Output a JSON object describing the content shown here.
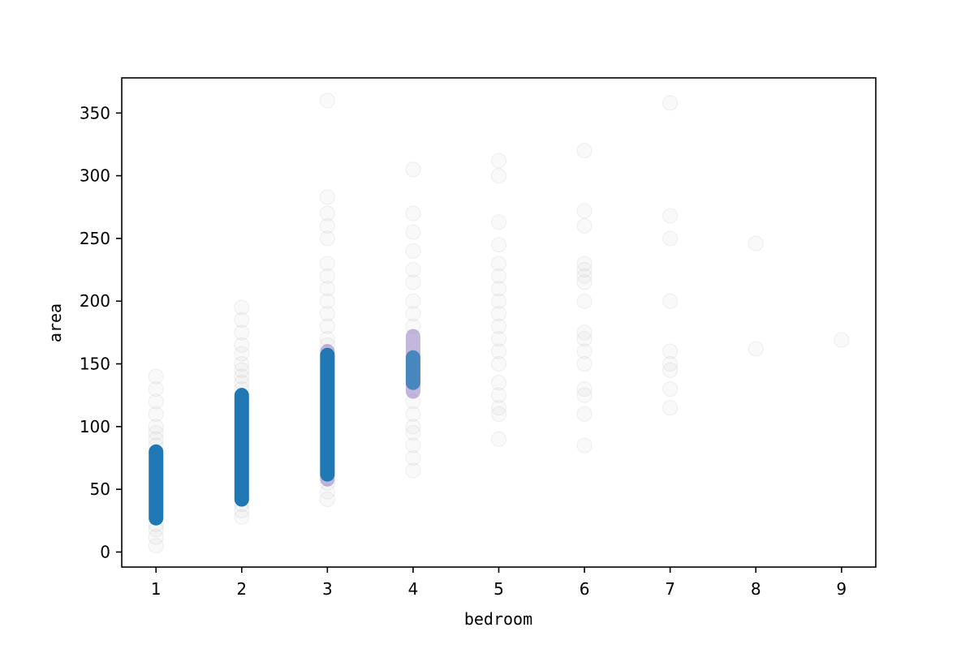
{
  "chart_data": {
    "type": "scatter",
    "title": "",
    "xlabel": "bedroom",
    "ylabel": "area",
    "xlim": [
      0.6,
      9.4
    ],
    "ylim": [
      -12,
      378
    ],
    "xticks": [
      1,
      2,
      3,
      4,
      5,
      6,
      7,
      8,
      9
    ],
    "yticks": [
      0,
      50,
      100,
      150,
      200,
      250,
      300,
      350
    ],
    "grid": false,
    "legend": "none",
    "colors": {
      "dense_points": "#1f77b4",
      "sparse_points": "#808080",
      "overlap_tint": "#7b5fb0",
      "axis": "#000000"
    },
    "dense_bands": [
      {
        "x": 1,
        "y_min": 27,
        "y_max": 80
      },
      {
        "x": 2,
        "y_min": 42,
        "y_max": 125
      },
      {
        "x": 3,
        "y_min": 62,
        "y_max": 157
      },
      {
        "x": 4,
        "y_min": 135,
        "y_max": 155
      }
    ],
    "tint_bands": [
      {
        "x": 3,
        "y_min": 58,
        "y_max": 160
      },
      {
        "x": 4,
        "y_min": 128,
        "y_max": 172
      }
    ],
    "sparse_points": [
      {
        "x": 1,
        "y": [
          5,
          12,
          18,
          22,
          85,
          90,
          95,
          100,
          110,
          120,
          130,
          140
        ]
      },
      {
        "x": 2,
        "y": [
          28,
          33,
          38,
          130,
          135,
          140,
          145,
          150,
          158,
          165,
          175,
          185,
          195
        ]
      },
      {
        "x": 3,
        "y": [
          42,
          48,
          55,
          165,
          170,
          180,
          190,
          200,
          210,
          220,
          230,
          250,
          260,
          270,
          283,
          360
        ]
      },
      {
        "x": 4,
        "y": [
          65,
          75,
          85,
          95,
          100,
          110,
          120,
          180,
          190,
          200,
          215,
          225,
          240,
          255,
          270,
          305
        ]
      },
      {
        "x": 5,
        "y": [
          90,
          110,
          115,
          125,
          135,
          150,
          160,
          170,
          180,
          190,
          200,
          210,
          220,
          230,
          245,
          263,
          300,
          312
        ]
      },
      {
        "x": 6,
        "y": [
          85,
          110,
          125,
          130,
          150,
          160,
          170,
          175,
          200,
          215,
          220,
          225,
          230,
          260,
          272,
          320
        ]
      },
      {
        "x": 7,
        "y": [
          115,
          130,
          145,
          150,
          160,
          200,
          250,
          268,
          358
        ]
      },
      {
        "x": 8,
        "y": [
          162,
          246
        ]
      },
      {
        "x": 9,
        "y": [
          169
        ]
      }
    ]
  }
}
